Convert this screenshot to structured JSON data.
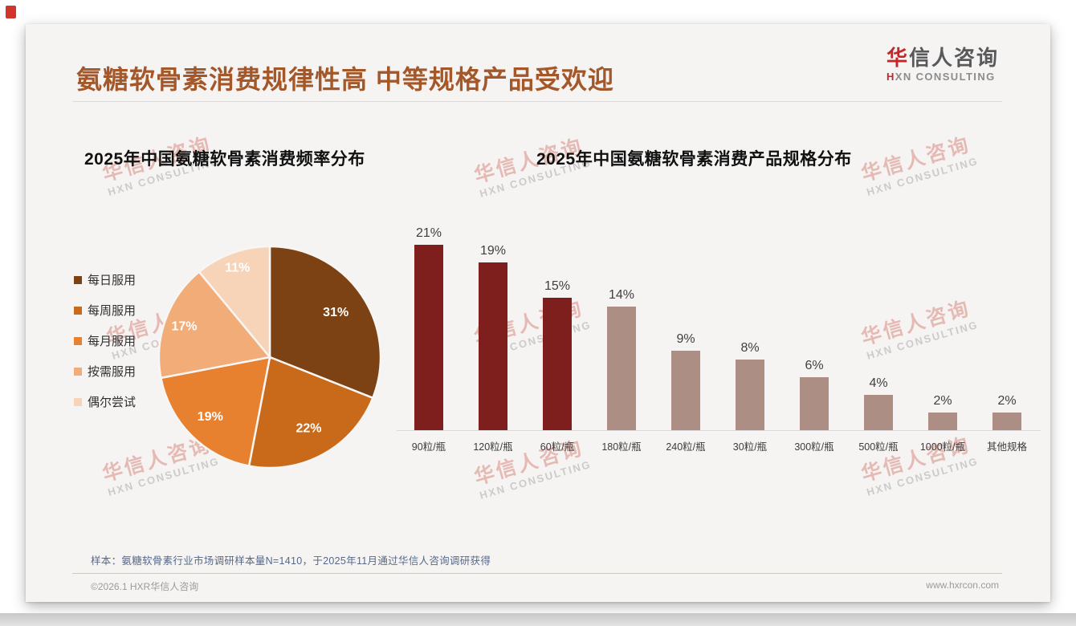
{
  "page": {
    "title": "氨糖软骨素消费规律性高 中等规格产品受欢迎",
    "footnote": "样本：氨糖软骨素行业市场调研样本量N=1410，于2025年11月通过华信人咨询调研获得",
    "footer_left": "©2026.1 HXR华信人咨询",
    "footer_right": "www.hxrcon.com"
  },
  "branding": {
    "logo_cn_first": "华",
    "logo_cn_rest": "信人咨询",
    "logo_en_first": "H",
    "logo_en_rest": "XN CONSULTING",
    "watermark_cn": "华信人咨询",
    "watermark_en": "HXN CONSULTING",
    "accent_red": "#c5262c",
    "title_brown": "#a4582a"
  },
  "chart_data": [
    {
      "type": "pie",
      "title": "2025年中国氨糖软骨素消费频率分布",
      "labels": [
        "每日服用",
        "每周服用",
        "每月服用",
        "按需服用",
        "偶尔尝试"
      ],
      "values": [
        31,
        22,
        19,
        17,
        11
      ],
      "colors": [
        "#7d4214",
        "#c96a1a",
        "#e8812f",
        "#f2ac77",
        "#f7d4b8"
      ],
      "value_suffix": "%",
      "legend_position": "left",
      "slice_label_color": "#ffffff",
      "start_angle": "top",
      "direction": "clockwise"
    },
    {
      "type": "bar",
      "title": "2025年中国氨糖软骨素消费产品规格分布",
      "categories": [
        "90粒/瓶",
        "120粒/瓶",
        "60粒/瓶",
        "180粒/瓶",
        "240粒/瓶",
        "30粒/瓶",
        "300粒/瓶",
        "500粒/瓶",
        "1000粒/瓶",
        "其他规格"
      ],
      "values": [
        21,
        19,
        15,
        14,
        9,
        8,
        6,
        4,
        2,
        2
      ],
      "bar_colors": [
        "#7e1f1d",
        "#7e1f1d",
        "#7e1f1d",
        "#ac8e85",
        "#ac8e85",
        "#ac8e85",
        "#ac8e85",
        "#ac8e85",
        "#ac8e85",
        "#ac8e85"
      ],
      "value_suffix": "%",
      "ylim": [
        0,
        23
      ],
      "grid": false,
      "axis_line_color": "#d9d9d9",
      "value_labels": true
    }
  ]
}
